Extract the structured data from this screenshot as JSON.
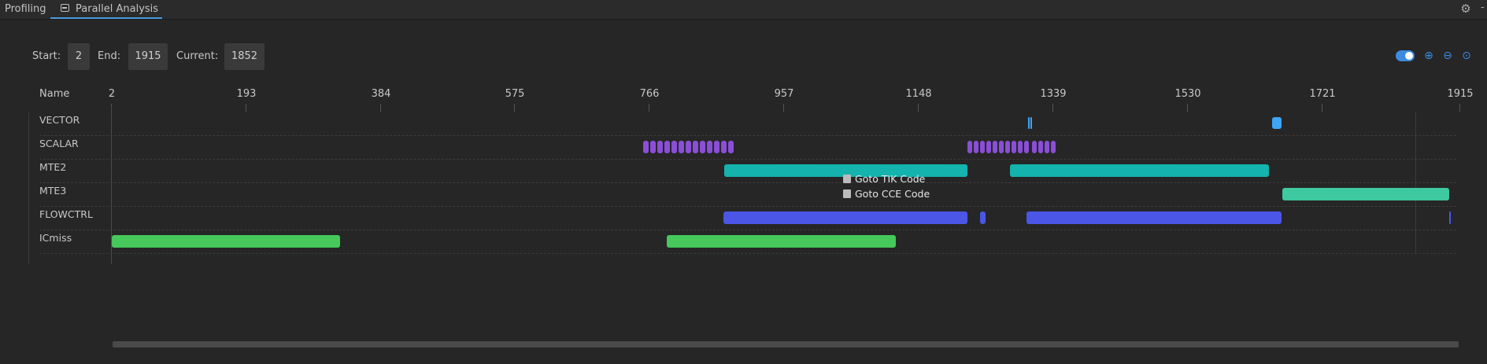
{
  "tabs": [
    {
      "label": "Profiling"
    },
    {
      "label": "Parallel Analysis"
    }
  ],
  "controls": {
    "start_label": "Start:",
    "start_value": "2",
    "end_label": "End:",
    "end_value": "1915",
    "current_label": "Current:",
    "current_value": "1852"
  },
  "timeline": {
    "name_header": "Name",
    "ticks": [
      "2",
      "193",
      "384",
      "575",
      "766",
      "957",
      "1148",
      "1339",
      "1530",
      "1721",
      "1915"
    ],
    "rows": [
      {
        "label": "VECTOR"
      },
      {
        "label": "SCALAR"
      },
      {
        "label": "MTE2"
      },
      {
        "label": "MTE3"
      },
      {
        "label": "FLOWCTRL"
      },
      {
        "label": "ICmiss"
      }
    ],
    "colors": {
      "vector": "#3fa5f5",
      "scalar": "#8a4fd6",
      "mte2": "#14b3ad",
      "mte3": "#3ec9a0",
      "flowctrl": "#4b55e6",
      "icmiss": "#46c85a"
    }
  },
  "context_menu": {
    "items": [
      {
        "label": "Goto TIK Code"
      },
      {
        "label": "Goto CCE Code"
      }
    ]
  }
}
